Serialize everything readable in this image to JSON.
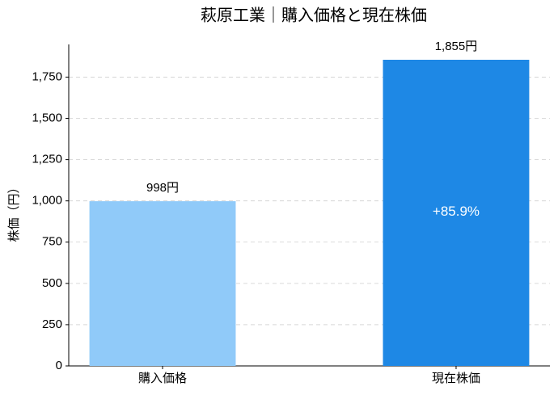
{
  "chart_data": {
    "type": "bar",
    "title": "萩原工業｜購入価格と現在株価",
    "ylabel": "株価（円）",
    "categories": [
      "購入価格",
      "現在株価"
    ],
    "values": [
      998,
      1855
    ],
    "value_labels": [
      "998円",
      "1,855円"
    ],
    "colors": [
      "#90caf9",
      "#1e88e5"
    ],
    "annotation": {
      "text": "+85.9%",
      "category_index": 1
    },
    "ylim": [
      0,
      1948
    ],
    "yticks": [
      0,
      250,
      500,
      750,
      {
        "value": 1000,
        "label": "1,000"
      },
      {
        "value": 1250,
        "label": "1,250"
      },
      {
        "value": 1500,
        "label": "1,500"
      },
      {
        "value": 1750,
        "label": "1,750"
      }
    ],
    "grid": true
  }
}
